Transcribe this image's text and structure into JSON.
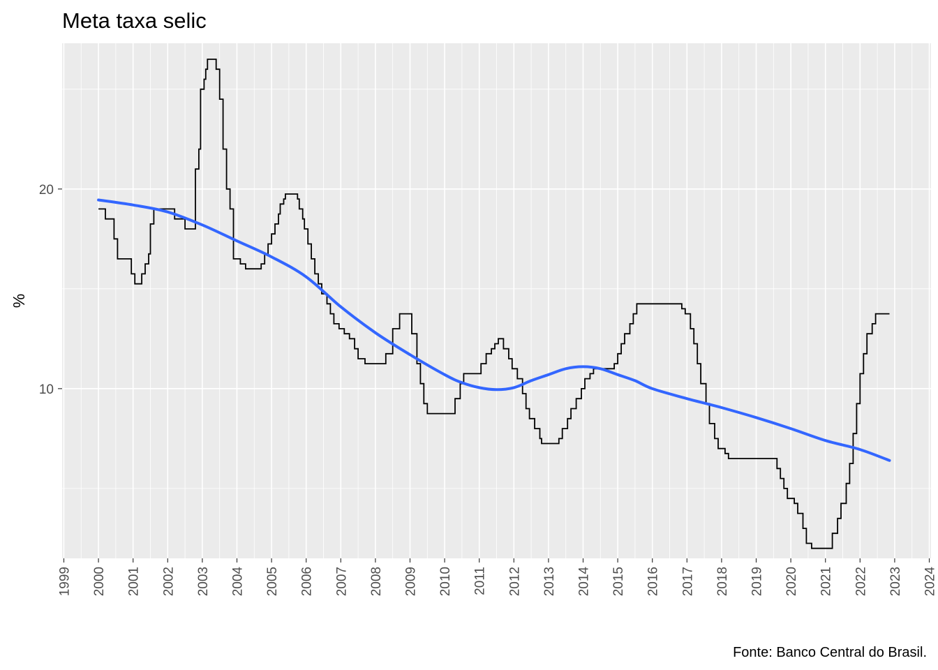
{
  "chart_data": {
    "type": "line",
    "title": "Meta taxa selic",
    "xlabel": "",
    "ylabel": "%",
    "caption": "Fonte: Banco Central do Brasil.",
    "xlim": [
      1998.95,
      2024.05
    ],
    "ylim": [
      1.5,
      27.3
    ],
    "x_ticks": [
      1999,
      2000,
      2001,
      2002,
      2003,
      2004,
      2005,
      2006,
      2007,
      2008,
      2009,
      2010,
      2011,
      2012,
      2013,
      2014,
      2015,
      2016,
      2017,
      2018,
      2019,
      2020,
      2021,
      2022,
      2023,
      2024
    ],
    "x_tick_labels": [
      "1999",
      "2000",
      "2001",
      "2002",
      "2003",
      "2004",
      "2005",
      "2006",
      "2007",
      "2008",
      "2009",
      "2010",
      "2011",
      "2012",
      "2013",
      "2014",
      "2015",
      "2016",
      "2017",
      "2018",
      "2019",
      "2020",
      "2021",
      "2022",
      "2023",
      "2024"
    ],
    "y_ticks": [
      10,
      20
    ],
    "y_tick_labels": [
      "10",
      "20"
    ],
    "grid": true,
    "series": [
      {
        "style": "step",
        "color": "#000000",
        "points": [
          [
            2000.0,
            19.0
          ],
          [
            2000.2,
            18.5
          ],
          [
            2000.45,
            17.5
          ],
          [
            2000.55,
            16.5
          ],
          [
            2000.95,
            15.75
          ],
          [
            2001.05,
            15.25
          ],
          [
            2001.25,
            15.75
          ],
          [
            2001.35,
            16.25
          ],
          [
            2001.45,
            16.75
          ],
          [
            2001.5,
            18.25
          ],
          [
            2001.6,
            19.0
          ],
          [
            2002.2,
            18.5
          ],
          [
            2002.5,
            18.0
          ],
          [
            2002.8,
            21.0
          ],
          [
            2002.9,
            22.0
          ],
          [
            2002.95,
            25.0
          ],
          [
            2003.05,
            25.5
          ],
          [
            2003.1,
            26.0
          ],
          [
            2003.15,
            26.5
          ],
          [
            2003.4,
            26.0
          ],
          [
            2003.5,
            24.5
          ],
          [
            2003.6,
            22.0
          ],
          [
            2003.7,
            20.0
          ],
          [
            2003.8,
            19.0
          ],
          [
            2003.9,
            16.5
          ],
          [
            2004.1,
            16.25
          ],
          [
            2004.25,
            16.0
          ],
          [
            2004.7,
            16.25
          ],
          [
            2004.8,
            16.75
          ],
          [
            2004.9,
            17.25
          ],
          [
            2005.0,
            17.75
          ],
          [
            2005.1,
            18.25
          ],
          [
            2005.2,
            18.75
          ],
          [
            2005.25,
            19.25
          ],
          [
            2005.35,
            19.5
          ],
          [
            2005.4,
            19.75
          ],
          [
            2005.75,
            19.5
          ],
          [
            2005.8,
            19.0
          ],
          [
            2005.9,
            18.5
          ],
          [
            2005.95,
            18.0
          ],
          [
            2006.05,
            17.25
          ],
          [
            2006.15,
            16.5
          ],
          [
            2006.25,
            15.75
          ],
          [
            2006.35,
            15.25
          ],
          [
            2006.45,
            14.75
          ],
          [
            2006.6,
            14.25
          ],
          [
            2006.7,
            13.75
          ],
          [
            2006.8,
            13.25
          ],
          [
            2006.95,
            13.0
          ],
          [
            2007.1,
            12.75
          ],
          [
            2007.25,
            12.5
          ],
          [
            2007.4,
            12.0
          ],
          [
            2007.5,
            11.5
          ],
          [
            2007.7,
            11.25
          ],
          [
            2008.3,
            11.75
          ],
          [
            2008.5,
            13.0
          ],
          [
            2008.7,
            13.75
          ],
          [
            2009.05,
            12.75
          ],
          [
            2009.2,
            11.25
          ],
          [
            2009.3,
            10.25
          ],
          [
            2009.4,
            9.25
          ],
          [
            2009.5,
            8.75
          ],
          [
            2010.3,
            9.5
          ],
          [
            2010.45,
            10.25
          ],
          [
            2010.55,
            10.75
          ],
          [
            2011.05,
            11.25
          ],
          [
            2011.2,
            11.75
          ],
          [
            2011.35,
            12.0
          ],
          [
            2011.45,
            12.25
          ],
          [
            2011.55,
            12.5
          ],
          [
            2011.7,
            12.0
          ],
          [
            2011.85,
            11.5
          ],
          [
            2011.95,
            11.0
          ],
          [
            2012.1,
            10.5
          ],
          [
            2012.25,
            9.75
          ],
          [
            2012.35,
            9.0
          ],
          [
            2012.45,
            8.5
          ],
          [
            2012.6,
            8.0
          ],
          [
            2012.75,
            7.5
          ],
          [
            2012.8,
            7.25
          ],
          [
            2013.3,
            7.5
          ],
          [
            2013.4,
            8.0
          ],
          [
            2013.55,
            8.5
          ],
          [
            2013.65,
            9.0
          ],
          [
            2013.8,
            9.5
          ],
          [
            2013.95,
            10.0
          ],
          [
            2014.05,
            10.5
          ],
          [
            2014.2,
            10.75
          ],
          [
            2014.3,
            11.0
          ],
          [
            2014.9,
            11.25
          ],
          [
            2015.0,
            11.75
          ],
          [
            2015.1,
            12.25
          ],
          [
            2015.2,
            12.75
          ],
          [
            2015.35,
            13.25
          ],
          [
            2015.45,
            13.75
          ],
          [
            2015.55,
            14.25
          ],
          [
            2016.85,
            14.0
          ],
          [
            2016.95,
            13.75
          ],
          [
            2017.1,
            13.0
          ],
          [
            2017.2,
            12.25
          ],
          [
            2017.3,
            11.25
          ],
          [
            2017.4,
            10.25
          ],
          [
            2017.55,
            9.25
          ],
          [
            2017.65,
            8.25
          ],
          [
            2017.8,
            7.5
          ],
          [
            2017.9,
            7.0
          ],
          [
            2018.1,
            6.75
          ],
          [
            2018.2,
            6.5
          ],
          [
            2019.6,
            6.0
          ],
          [
            2019.7,
            5.5
          ],
          [
            2019.8,
            5.0
          ],
          [
            2019.9,
            4.5
          ],
          [
            2020.1,
            4.25
          ],
          [
            2020.2,
            3.75
          ],
          [
            2020.35,
            3.0
          ],
          [
            2020.45,
            2.25
          ],
          [
            2020.6,
            2.0
          ],
          [
            2021.2,
            2.75
          ],
          [
            2021.35,
            3.5
          ],
          [
            2021.45,
            4.25
          ],
          [
            2021.6,
            5.25
          ],
          [
            2021.7,
            6.25
          ],
          [
            2021.8,
            7.75
          ],
          [
            2021.9,
            9.25
          ],
          [
            2022.0,
            10.75
          ],
          [
            2022.1,
            11.75
          ],
          [
            2022.2,
            12.75
          ],
          [
            2022.35,
            13.25
          ],
          [
            2022.45,
            13.75
          ],
          [
            2022.85,
            13.75
          ]
        ]
      },
      {
        "style": "smooth",
        "color": "#3366FF",
        "points": [
          [
            2000.0,
            19.45
          ],
          [
            2001.0,
            19.2
          ],
          [
            2002.0,
            18.85
          ],
          [
            2003.0,
            18.2
          ],
          [
            2004.0,
            17.4
          ],
          [
            2005.0,
            16.6
          ],
          [
            2006.0,
            15.6
          ],
          [
            2007.0,
            14.1
          ],
          [
            2008.0,
            12.8
          ],
          [
            2009.0,
            11.7
          ],
          [
            2010.0,
            10.7
          ],
          [
            2010.5,
            10.3
          ],
          [
            2011.0,
            10.05
          ],
          [
            2011.5,
            9.95
          ],
          [
            2012.0,
            10.05
          ],
          [
            2012.5,
            10.4
          ],
          [
            2013.0,
            10.7
          ],
          [
            2013.5,
            11.0
          ],
          [
            2014.0,
            11.1
          ],
          [
            2014.5,
            11.0
          ],
          [
            2015.0,
            10.7
          ],
          [
            2015.5,
            10.4
          ],
          [
            2016.0,
            10.0
          ],
          [
            2017.0,
            9.5
          ],
          [
            2018.0,
            9.05
          ],
          [
            2019.0,
            8.55
          ],
          [
            2020.0,
            8.0
          ],
          [
            2021.0,
            7.4
          ],
          [
            2022.0,
            6.95
          ],
          [
            2022.85,
            6.4
          ]
        ]
      }
    ]
  }
}
